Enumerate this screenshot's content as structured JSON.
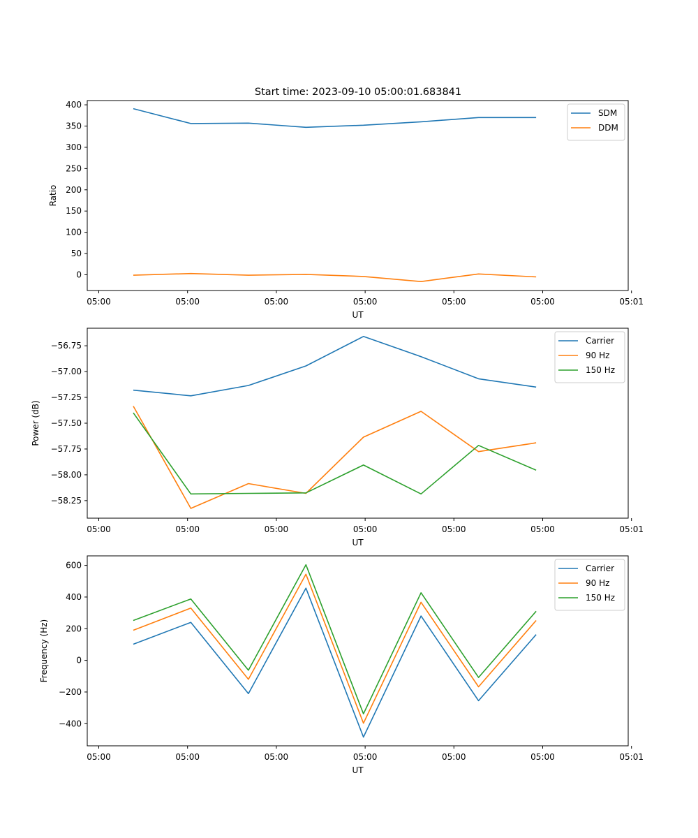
{
  "figure_title": "Start time: 2023-09-10 05:00:01.683841",
  "chart_data": [
    {
      "type": "line",
      "title": "Start time: 2023-09-10 05:00:01.683841",
      "xlabel": "UT",
      "ylabel": "Ratio",
      "x": [
        1,
        2,
        3,
        4,
        5,
        6,
        7,
        8
      ],
      "xlim": [
        0.2,
        9.6
      ],
      "xticks": [
        0.4,
        1.943,
        3.486,
        5.029,
        6.571,
        8.114,
        9.657
      ],
      "xtick_labels": [
        "05:00",
        "05:00",
        "05:00",
        "05:00",
        "05:00",
        "05:00",
        "05:01"
      ],
      "ylim": [
        -37,
        410
      ],
      "yticks": [
        0,
        50,
        100,
        150,
        200,
        250,
        300,
        350,
        400
      ],
      "ytick_labels": [
        "0",
        "50",
        "100",
        "150",
        "200",
        "250",
        "300",
        "350",
        "400"
      ],
      "legend_position": "top-right",
      "series": [
        {
          "name": "SDM",
          "color": "#1f77b4",
          "values": [
            391,
            356,
            357,
            347,
            352,
            360,
            370,
            370
          ]
        },
        {
          "name": "DDM",
          "color": "#ff7f0e",
          "values": [
            -1,
            3,
            -1,
            1,
            -4,
            -16,
            2,
            -5
          ]
        }
      ]
    },
    {
      "type": "line",
      "xlabel": "UT",
      "ylabel": "Power (dB)",
      "x": [
        1,
        2,
        3,
        4,
        5,
        6,
        7,
        8
      ],
      "xlim": [
        0.2,
        9.6
      ],
      "xticks": [
        0.4,
        1.943,
        3.486,
        5.029,
        6.571,
        8.114,
        9.657
      ],
      "xtick_labels": [
        "05:00",
        "05:00",
        "05:00",
        "05:00",
        "05:00",
        "05:00",
        "05:01"
      ],
      "ylim": [
        -58.42,
        -56.58
      ],
      "yticks": [
        -58.25,
        -58.0,
        -57.75,
        -57.5,
        -57.25,
        -57.0,
        -56.75
      ],
      "ytick_labels": [
        "−58.25",
        "−58.00",
        "−57.75",
        "−57.50",
        "−57.25",
        "−57.00",
        "−56.75"
      ],
      "legend_position": "top-right",
      "series": [
        {
          "name": "Carrier",
          "color": "#1f77b4",
          "values": [
            -57.18,
            -57.235,
            -57.135,
            -56.945,
            -56.66,
            -56.855,
            -57.07,
            -57.15
          ]
        },
        {
          "name": "90 Hz",
          "color": "#ff7f0e",
          "values": [
            -57.335,
            -58.325,
            -58.085,
            -58.18,
            -57.635,
            -57.385,
            -57.775,
            -57.69
          ]
        },
        {
          "name": "150 Hz",
          "color": "#2ca02c",
          "values": [
            -57.4,
            -58.185,
            -58.18,
            -58.175,
            -57.905,
            -58.185,
            -57.715,
            -57.955
          ]
        }
      ]
    },
    {
      "type": "line",
      "xlabel": "UT",
      "ylabel": "Frequency (Hz)",
      "x": [
        1,
        2,
        3,
        4,
        5,
        6,
        7,
        8
      ],
      "xlim": [
        0.2,
        9.6
      ],
      "xticks": [
        0.4,
        1.943,
        3.486,
        5.029,
        6.571,
        8.114,
        9.657
      ],
      "xtick_labels": [
        "05:00",
        "05:00",
        "05:00",
        "05:00",
        "05:00",
        "05:00",
        "05:01"
      ],
      "ylim": [
        -540,
        660
      ],
      "yticks": [
        -400,
        -200,
        0,
        200,
        400,
        600
      ],
      "ytick_labels": [
        "−400",
        "−200",
        "0",
        "200",
        "400",
        "600"
      ],
      "legend_position": "top-right",
      "series": [
        {
          "name": "Carrier",
          "color": "#1f77b4",
          "values": [
            102,
            240,
            -210,
            456,
            -485,
            280,
            -255,
            163
          ]
        },
        {
          "name": "90 Hz",
          "color": "#ff7f0e",
          "values": [
            190,
            330,
            -120,
            544,
            -397,
            367,
            -167,
            252
          ]
        },
        {
          "name": "150 Hz",
          "color": "#2ca02c",
          "values": [
            252,
            388,
            -62,
            604,
            -338,
            427,
            -108,
            310
          ]
        }
      ]
    }
  ]
}
